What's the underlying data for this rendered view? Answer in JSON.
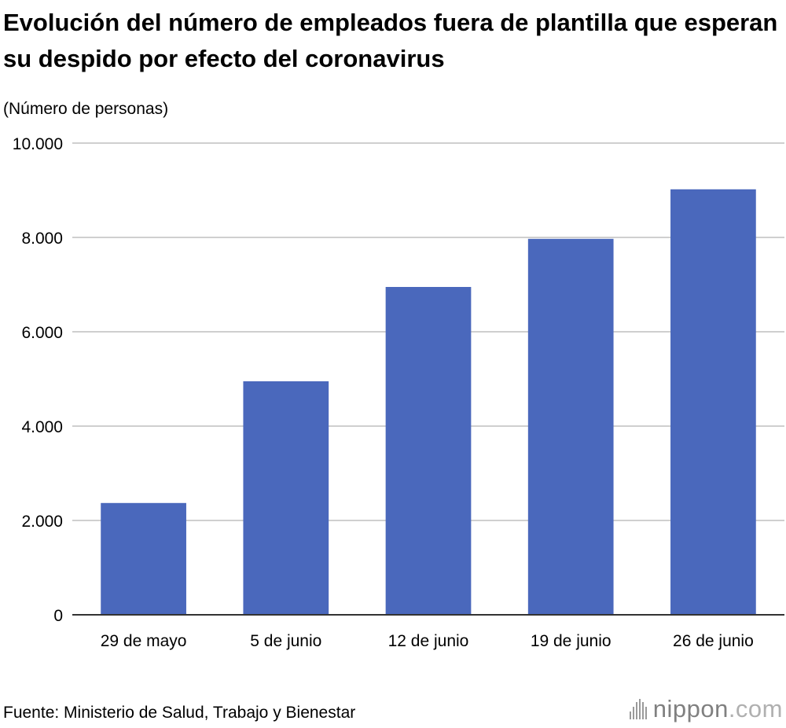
{
  "title": "Evolución del número de empleados fuera de plantilla que esperan su despido por efecto del coronavirus",
  "source": "Fuente: Ministerio de Salud, Trabajo y Bienestar",
  "brand": {
    "name": "nippon",
    "suffix": ".com"
  },
  "colors": {
    "bar": "#4a68bc",
    "grid": "#cfcfcf",
    "axis": "#333333"
  },
  "chart_data": {
    "type": "bar",
    "title": "Evolución del número de empleados fuera de plantilla que esperan su despido por efecto del coronavirus",
    "ylabel": "(Número de personas)",
    "xlabel": "",
    "categories": [
      "29 de mayo",
      "5 de junio",
      "12 de junio",
      "19 de junio",
      "26 de junio"
    ],
    "values": [
      2370,
      4950,
      6950,
      7970,
      9020
    ],
    "ylim": [
      0,
      10000
    ],
    "yticks": [
      0,
      2000,
      4000,
      6000,
      8000,
      10000
    ],
    "ytick_labels": [
      "0",
      "2.000",
      "4.000",
      "6.000",
      "8.000",
      "10.000"
    ],
    "grid": true,
    "legend": "none"
  }
}
